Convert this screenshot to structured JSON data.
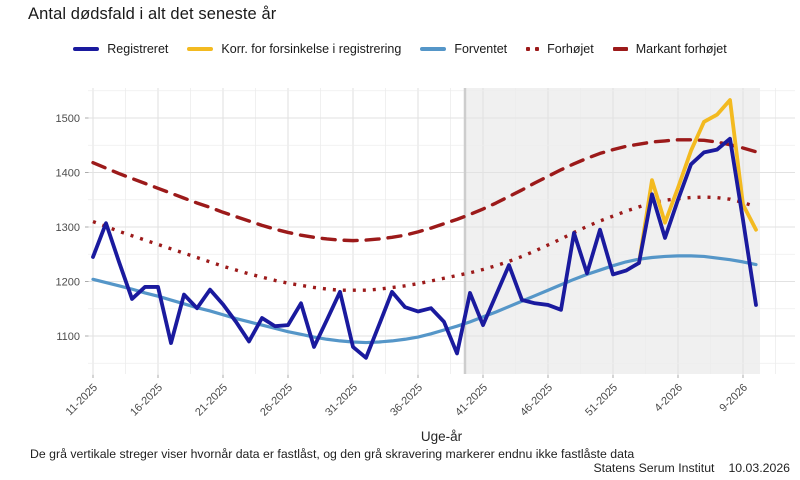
{
  "title": "Antal dødsfald i alt det seneste år",
  "legend": {
    "items": [
      {
        "label": "Registreret",
        "color": "#1a1a9e",
        "line_style": "solid"
      },
      {
        "label": "Korr. for forsinkelse i registrering",
        "color": "#f3ba20",
        "line_style": "solid"
      },
      {
        "label": "Forventet",
        "color": "#5596c8",
        "line_style": "solid"
      },
      {
        "label": "Forhøjet",
        "color": "#9c1a1a",
        "line_style": "dotted"
      },
      {
        "label": "Markant forhøjet",
        "color": "#9c1a1a",
        "line_style": "dashed"
      }
    ]
  },
  "chart_data": {
    "type": "line",
    "title": "Antal dødsfald i alt det seneste år",
    "xlabel": "Uge-år",
    "ylabel": "",
    "ylim": [
      1030,
      1555
    ],
    "y_ticks": [
      1100,
      1200,
      1300,
      1400,
      1500
    ],
    "grid": {
      "major": "#e2e2e2",
      "minor": "#ededed"
    },
    "x_ticks": [
      {
        "i": 0,
        "label": "11-2025"
      },
      {
        "i": 5,
        "label": "16-2025"
      },
      {
        "i": 10,
        "label": "21-2025"
      },
      {
        "i": 15,
        "label": "26-2025"
      },
      {
        "i": 20,
        "label": "31-2025"
      },
      {
        "i": 25,
        "label": "36-2025"
      },
      {
        "i": 30,
        "label": "41-2025"
      },
      {
        "i": 35,
        "label": "46-2025"
      },
      {
        "i": 40,
        "label": "51-2025"
      },
      {
        "i": 45,
        "label": "4-2026"
      },
      {
        "i": 50,
        "label": "9-2026"
      }
    ],
    "categories": [
      "11-2025",
      "12-2025",
      "13-2025",
      "14-2025",
      "15-2025",
      "16-2025",
      "17-2025",
      "18-2025",
      "19-2025",
      "20-2025",
      "21-2025",
      "22-2025",
      "23-2025",
      "24-2025",
      "25-2025",
      "26-2025",
      "27-2025",
      "28-2025",
      "29-2025",
      "30-2025",
      "31-2025",
      "32-2025",
      "33-2025",
      "34-2025",
      "35-2025",
      "36-2025",
      "37-2025",
      "38-2025",
      "39-2025",
      "40-2025",
      "41-2025",
      "42-2025",
      "43-2025",
      "44-2025",
      "45-2025",
      "46-2025",
      "47-2025",
      "48-2025",
      "49-2025",
      "50-2025",
      "51-2025",
      "52-2025",
      "1-2026",
      "2-2026",
      "3-2026",
      "4-2026",
      "5-2026",
      "6-2026",
      "7-2026",
      "8-2026",
      "9-2026",
      "10-2026"
    ],
    "shade": {
      "start_week": "40-2025",
      "color": "#f0f0f0",
      "locked_line_color": "#cdcdcd"
    },
    "series": [
      {
        "name": "Markant forhøjet",
        "color": "#9c1a1a",
        "style": "dashed",
        "width": 3.4,
        "offset": 0,
        "values": [
          1418,
          1408,
          1398,
          1389,
          1380,
          1371,
          1362,
          1353,
          1344,
          1336,
          1327,
          1319,
          1311,
          1303,
          1296,
          1290,
          1285,
          1281,
          1278,
          1276,
          1275,
          1276,
          1278,
          1281,
          1285,
          1291,
          1298,
          1306,
          1314,
          1323,
          1333,
          1344,
          1356,
          1368,
          1381,
          1393,
          1405,
          1416,
          1426,
          1435,
          1442,
          1448,
          1452,
          1456,
          1458,
          1460,
          1460,
          1459,
          1456,
          1451,
          1445,
          1438
        ]
      },
      {
        "name": "Forhøjet",
        "color": "#9c1a1a",
        "style": "dotted",
        "width": 3.4,
        "offset": 0,
        "values": [
          1310,
          1301,
          1292,
          1284,
          1276,
          1268,
          1260,
          1252,
          1244,
          1236,
          1228,
          1221,
          1214,
          1208,
          1202,
          1197,
          1193,
          1189,
          1186,
          1184,
          1184,
          1184,
          1186,
          1189,
          1192,
          1196,
          1201,
          1206,
          1211,
          1216,
          1222,
          1229,
          1237,
          1246,
          1256,
          1267,
          1278,
          1290,
          1301,
          1311,
          1320,
          1329,
          1337,
          1344,
          1349,
          1352,
          1354,
          1355,
          1354,
          1351,
          1345,
          1337
        ]
      },
      {
        "name": "Forventet",
        "color": "#5596c8",
        "style": "solid",
        "width": 3.2,
        "offset": 0,
        "values": [
          1204,
          1198,
          1192,
          1186,
          1179,
          1173,
          1166,
          1159,
          1152,
          1146,
          1139,
          1132,
          1126,
          1120,
          1114,
          1108,
          1103,
          1098,
          1094,
          1091,
          1089,
          1088,
          1089,
          1091,
          1094,
          1098,
          1104,
          1111,
          1118,
          1126,
          1135,
          1144,
          1154,
          1164,
          1174,
          1184,
          1194,
          1204,
          1213,
          1221,
          1229,
          1236,
          1241,
          1244,
          1246,
          1247,
          1247,
          1246,
          1243,
          1240,
          1236,
          1231
        ]
      },
      {
        "name": "Korr. for forsinkelse i registrering",
        "color": "#f3ba20",
        "style": "solid",
        "width": 3.8,
        "offset": 42,
        "values": [
          1234,
          1386,
          1308,
          1372,
          1440,
          1493,
          1506,
          1533,
          1341,
          1295
        ]
      },
      {
        "name": "Registreret",
        "color": "#1a1a9e",
        "style": "solid",
        "width": 3.8,
        "offset": 0,
        "values": [
          1245,
          1307,
          1236,
          1168,
          1190,
          1190,
          1087,
          1176,
          1151,
          1185,
          1158,
          1126,
          1090,
          1133,
          1118,
          1120,
          1160,
          1080,
          1130,
          1181,
          1080,
          1060,
          1120,
          1181,
          1153,
          1145,
          1151,
          1126,
          1068,
          1179,
          1120,
          1175,
          1230,
          1166,
          1160,
          1157,
          1148,
          1289,
          1215,
          1295,
          1213,
          1220,
          1234,
          1360,
          1280,
          1350,
          1415,
          1437,
          1442,
          1462,
          1313,
          1157
        ]
      }
    ]
  },
  "footer": {
    "note": "De grå vertikale streger viser hvornår data er fastlåst, og den grå skravering markerer endnu ikke fastlåste data",
    "credit_org": "Statens Serum Institut",
    "credit_date": "10.03.2026"
  }
}
